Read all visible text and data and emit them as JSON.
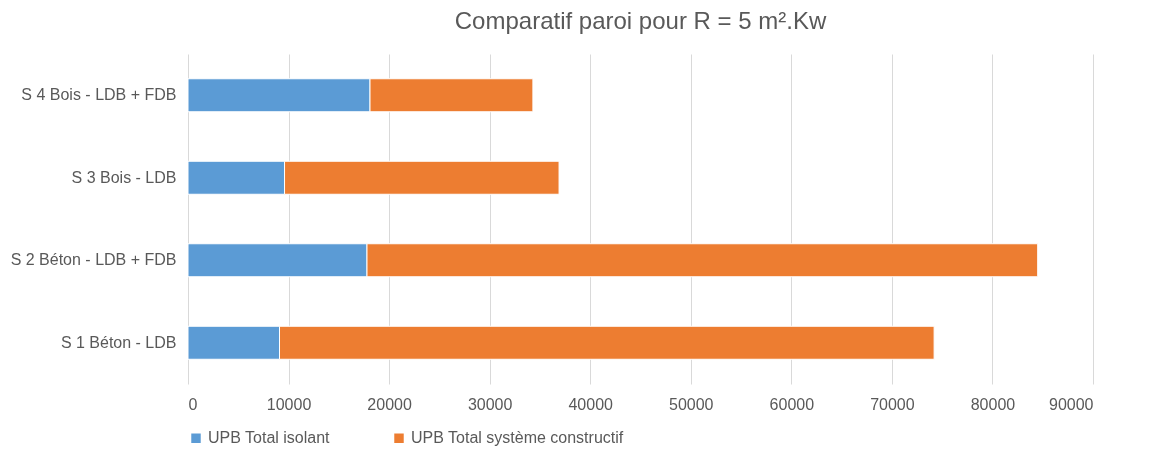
{
  "chart_data": {
    "type": "bar",
    "orientation": "horizontal",
    "stacked": true,
    "title": "Comparatif paroi pour R = 5 m².Kw",
    "categories": [
      "S 4 Bois - LDB + FDB",
      "S 3 Bois - LDB",
      "S 2 Béton - LDB + FDB",
      "S 1 Béton - LDB"
    ],
    "series": [
      {
        "name": "UPB Total isolant",
        "color": "#5b9bd5",
        "values": [
          18100,
          9600,
          17800,
          9100
        ]
      },
      {
        "name": "UPB Total système constructif",
        "color": "#ed7d31",
        "values": [
          16200,
          27300,
          66700,
          65100
        ]
      }
    ],
    "xlim": [
      0,
      90000
    ],
    "xticks": [
      0,
      10000,
      20000,
      30000,
      40000,
      50000,
      60000,
      70000,
      80000,
      90000
    ],
    "grid": "x",
    "legend": "bottom"
  }
}
